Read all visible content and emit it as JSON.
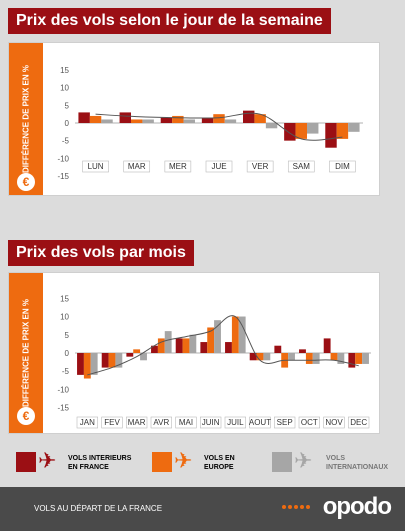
{
  "titles": {
    "weekday": "Prix des vols selon le jour de la semaine",
    "month": "Prix des vols par mois"
  },
  "ylabel": "DIFFÉRENCE DE PRIX EN %",
  "euro_icon": "€",
  "colors": {
    "interieurs": "#9b0f14",
    "europe": "#ee6b10",
    "internationaux": "#a6a6a6",
    "title_bg": "#9b0f14",
    "badge": "#ee6b10"
  },
  "chart_data": [
    {
      "type": "bar",
      "title": "Prix des vols selon le jour de la semaine",
      "ylabel": "DIFFÉRENCE DE PRIX EN %",
      "ylim": [
        -17,
        17
      ],
      "yticks": [
        15,
        10,
        5,
        0,
        -5,
        -10,
        -15
      ],
      "categories": [
        "LUN",
        "MAR",
        "MER",
        "JUE",
        "VER",
        "SAM",
        "DIM"
      ],
      "series": [
        {
          "name": "VOLS INTERIEURS EN FRANCE",
          "values": [
            3,
            3,
            1.5,
            1.5,
            3.5,
            -5,
            -7
          ]
        },
        {
          "name": "VOLS EN EUROPE",
          "values": [
            2,
            1,
            2,
            2.5,
            2.5,
            -4.5,
            -4.5
          ]
        },
        {
          "name": "VOLS INTERNATIONAUX",
          "values": [
            1,
            1,
            1,
            1,
            -1.5,
            -3,
            -2.5
          ]
        }
      ],
      "trend": [
        2.5,
        1.8,
        1.5,
        1.5,
        2.5,
        -4.5,
        -4
      ]
    },
    {
      "type": "bar",
      "title": "Prix des vols par mois",
      "ylabel": "DIFFÉRENCE DE PRIX EN %",
      "ylim": [
        -17,
        17
      ],
      "yticks": [
        15,
        10,
        5,
        0,
        -5,
        -10,
        -15
      ],
      "categories": [
        "JAN",
        "FEV",
        "MAR",
        "AVR",
        "MAI",
        "JUIN",
        "JUIL",
        "AOUT",
        "SEP",
        "OCT",
        "NOV",
        "DEC"
      ],
      "series": [
        {
          "name": "VOLS INTERIEURS EN FRANCE",
          "values": [
            -6,
            -4,
            -1,
            2,
            4,
            3,
            3,
            -2,
            2,
            1,
            4,
            -4
          ]
        },
        {
          "name": "VOLS EN EUROPE",
          "values": [
            -7,
            -4,
            1,
            4,
            4,
            7,
            10,
            -2,
            -4,
            -3,
            -2,
            -3
          ]
        },
        {
          "name": "VOLS INTERNATIONAUX",
          "values": [
            -6,
            -4,
            -2,
            6,
            5,
            9,
            10,
            -2,
            -2,
            -3,
            -3,
            -3
          ]
        }
      ],
      "trend": [
        -6,
        -4,
        -1,
        3,
        4.5,
        6,
        10,
        -2,
        -2,
        -2,
        -2,
        -3.5
      ]
    }
  ],
  "legend": [
    {
      "label": "VOLS INTERIEURS EN FRANCE",
      "color": "#9b0f14",
      "icon": "plane-icon"
    },
    {
      "label": "VOLS EN EUROPE",
      "color": "#ee6b10",
      "icon": "plane-icon"
    },
    {
      "label": "VOLS INTERNATIONAUX",
      "color": "#a6a6a6",
      "icon": "plane-icon"
    }
  ],
  "footer": {
    "text": "VOLS AU DÉPART DE LA FRANCE",
    "logo": "opodo"
  }
}
